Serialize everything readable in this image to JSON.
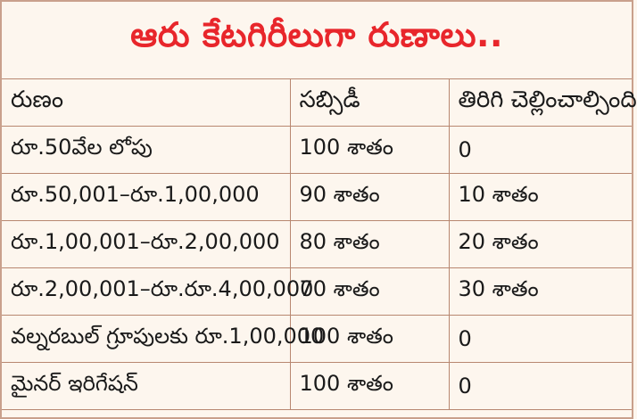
{
  "title": "ఆరు కేటగిరీలుగా రుణాలు..",
  "table": {
    "headers": [
      "రుణం",
      "సబ్సిడీ",
      "తిరిగి చెల్లించాల్సింది"
    ],
    "rows": [
      [
        "రూ.50వేల లోపు",
        "100 శాతం",
        "0"
      ],
      [
        "రూ.50,001–రూ.1,00,000",
        "90 శాతం",
        "10 శాతం"
      ],
      [
        "రూ.1,00,001–రూ.2,00,000",
        "80 శాతం",
        "20 శాతం"
      ],
      [
        "రూ.2,00,001–రూ.రూ.4,00,000",
        "70 శాతం",
        "30 శాతం"
      ],
      [
        "వల్నరబుల్ గ్రూపులకు రూ.1,00,000",
        "100 శాతం",
        "0"
      ],
      [
        "మైనర్ ఇరిగేషన్",
        "100 శాతం",
        "0"
      ]
    ]
  }
}
